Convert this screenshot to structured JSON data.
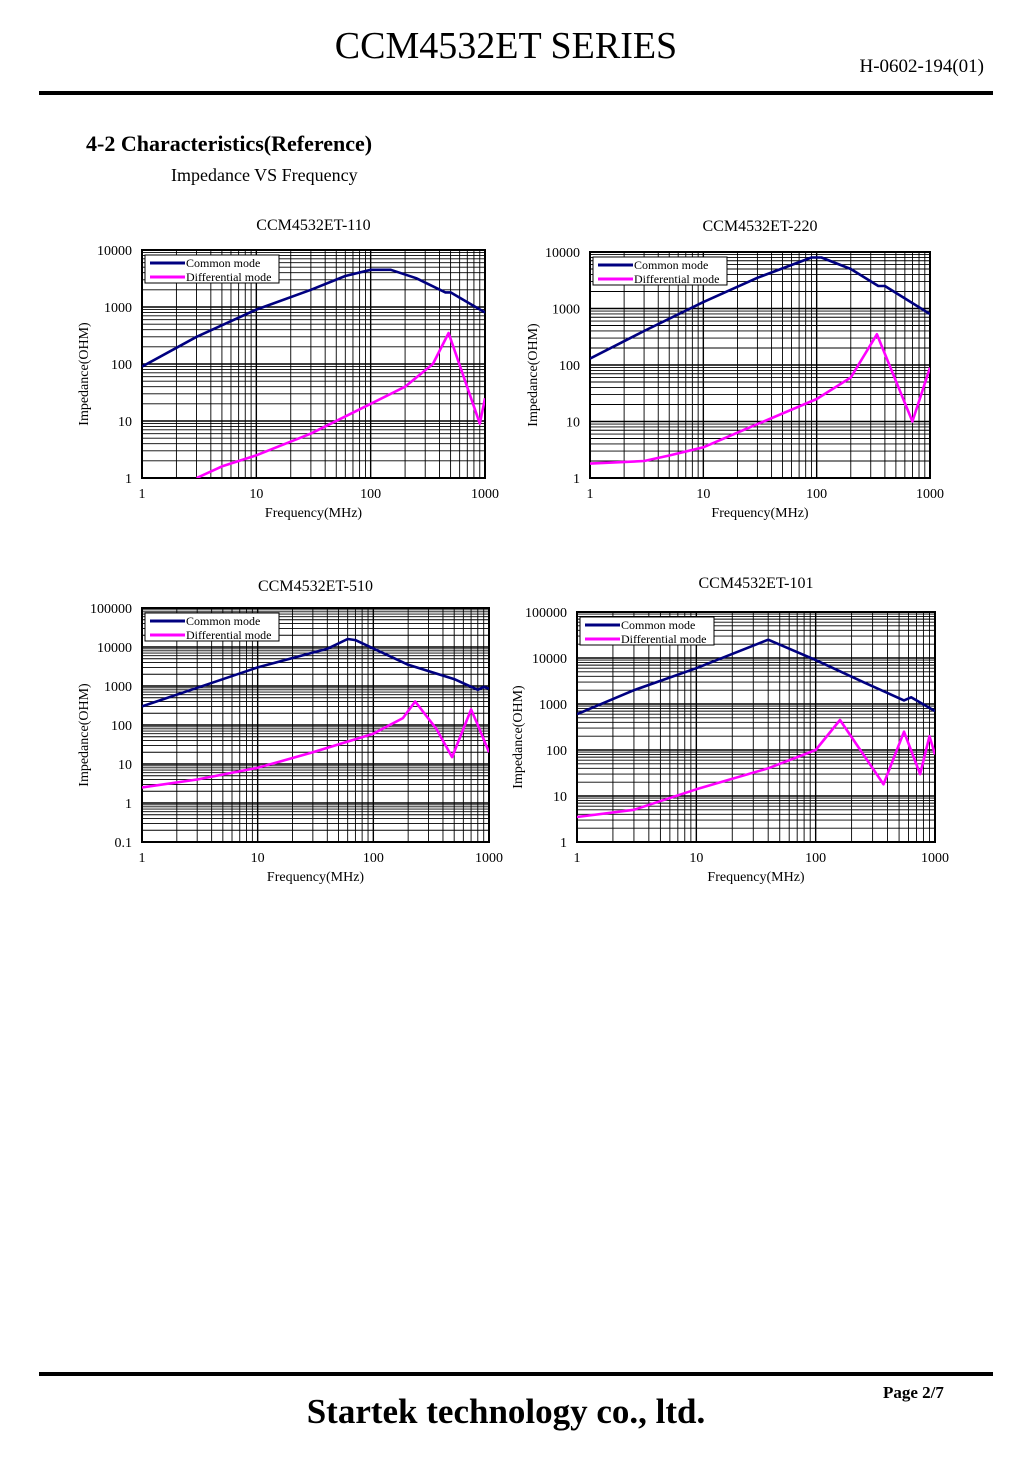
{
  "header": {
    "title": "CCM4532ET SERIES",
    "doc_code": "H-0602-194(01)"
  },
  "section": {
    "title": "4-2 Characteristics(Reference)",
    "subtitle": "Impedance VS Frequency"
  },
  "footer": {
    "page": "Page 2/7",
    "company": "Startek technology co., ltd."
  },
  "colors": {
    "common": "#000080",
    "differential": "#ff00ff"
  },
  "chart_data": [
    {
      "type": "line",
      "title": "CCM4532ET-110",
      "xlabel": "Frequency(MHz)",
      "ylabel": "Impedance(OHM)",
      "xscale": "log",
      "yscale": "log",
      "xlim": [
        1,
        1000
      ],
      "ylim": [
        1,
        10000
      ],
      "xticks": [
        "1",
        "10",
        "100",
        "1000"
      ],
      "yticks": [
        "1",
        "10",
        "100",
        "1000",
        "10000"
      ],
      "grid": true,
      "legend": "top-left",
      "series": [
        {
          "name": "Common mode",
          "points": [
            [
              1,
              90
            ],
            [
              3,
              300
            ],
            [
              10,
              900
            ],
            [
              30,
              2000
            ],
            [
              60,
              3500
            ],
            [
              100,
              4500
            ],
            [
              150,
              4500
            ],
            [
              250,
              3200
            ],
            [
              450,
              1800
            ],
            [
              500,
              1800
            ],
            [
              1000,
              800
            ]
          ]
        },
        {
          "name": "Differential mode",
          "points": [
            [
              3,
              1
            ],
            [
              5,
              1.6
            ],
            [
              10,
              2.5
            ],
            [
              30,
              6
            ],
            [
              100,
              20
            ],
            [
              200,
              40
            ],
            [
              350,
              100
            ],
            [
              480,
              350
            ],
            [
              900,
              9
            ],
            [
              1000,
              25
            ]
          ]
        }
      ]
    },
    {
      "type": "line",
      "title": "CCM4532ET-220",
      "xlabel": "Frequency(MHz)",
      "ylabel": "Impedance(OHM)",
      "xscale": "log",
      "yscale": "log",
      "xlim": [
        1,
        1000
      ],
      "ylim": [
        1,
        10000
      ],
      "xticks": [
        "1",
        "10",
        "100",
        "1000"
      ],
      "yticks": [
        "1",
        "10",
        "100",
        "1000",
        "10000"
      ],
      "grid": true,
      "legend": "top-left",
      "series": [
        {
          "name": "Common mode",
          "points": [
            [
              1,
              130
            ],
            [
              3,
              400
            ],
            [
              10,
              1300
            ],
            [
              30,
              3500
            ],
            [
              90,
              8000
            ],
            [
              110,
              8000
            ],
            [
              200,
              5000
            ],
            [
              350,
              2500
            ],
            [
              400,
              2500
            ],
            [
              1000,
              800
            ]
          ]
        },
        {
          "name": "Differential mode",
          "points": [
            [
              1,
              1.8
            ],
            [
              3,
              2
            ],
            [
              5,
              2.5
            ],
            [
              10,
              3.5
            ],
            [
              30,
              9
            ],
            [
              100,
              25
            ],
            [
              200,
              60
            ],
            [
              340,
              350
            ],
            [
              700,
              10
            ],
            [
              1000,
              90
            ]
          ]
        }
      ]
    },
    {
      "type": "line",
      "title": "CCM4532ET-510",
      "xlabel": "Frequency(MHz)",
      "ylabel": "Impedance(OHM)",
      "xscale": "log",
      "yscale": "log",
      "xlim": [
        1,
        1000
      ],
      "ylim": [
        0.1,
        100000
      ],
      "xticks": [
        "1",
        "10",
        "100",
        "1000"
      ],
      "yticks": [
        "0.1",
        "1",
        "10",
        "100",
        "1000",
        "10000",
        "100000"
      ],
      "grid": true,
      "legend": "top-left",
      "series": [
        {
          "name": "Common mode",
          "points": [
            [
              1,
              300
            ],
            [
              3,
              900
            ],
            [
              10,
              3000
            ],
            [
              40,
              9000
            ],
            [
              60,
              16000
            ],
            [
              70,
              15000
            ],
            [
              200,
              3500
            ],
            [
              500,
              1500
            ],
            [
              800,
              800
            ],
            [
              900,
              950
            ],
            [
              1000,
              850
            ]
          ]
        },
        {
          "name": "Differential mode",
          "points": [
            [
              1,
              2.5
            ],
            [
              3,
              4
            ],
            [
              10,
              8
            ],
            [
              30,
              20
            ],
            [
              100,
              60
            ],
            [
              180,
              150
            ],
            [
              230,
              400
            ],
            [
              350,
              80
            ],
            [
              480,
              15
            ],
            [
              700,
              250
            ],
            [
              800,
              100
            ],
            [
              1000,
              20
            ]
          ]
        }
      ]
    },
    {
      "type": "line",
      "title": "CCM4532ET-101",
      "xlabel": "Frequency(MHz)",
      "ylabel": "Impedance(OHM)",
      "xscale": "log",
      "yscale": "log",
      "xlim": [
        1,
        1000
      ],
      "ylim": [
        1,
        100000
      ],
      "xticks": [
        "1",
        "10",
        "100",
        "1000"
      ],
      "yticks": [
        "1",
        "10",
        "100",
        "1000",
        "10000",
        "100000"
      ],
      "grid": true,
      "legend": "top-left",
      "series": [
        {
          "name": "Common mode",
          "points": [
            [
              1,
              600
            ],
            [
              3,
              2000
            ],
            [
              10,
              6000
            ],
            [
              40,
              25000
            ],
            [
              100,
              9000
            ],
            [
              250,
              3000
            ],
            [
              550,
              1200
            ],
            [
              630,
              1400
            ],
            [
              1000,
              700
            ]
          ]
        },
        {
          "name": "Differential mode",
          "points": [
            [
              1,
              3.5
            ],
            [
              3,
              5
            ],
            [
              10,
              14
            ],
            [
              40,
              40
            ],
            [
              100,
              100
            ],
            [
              160,
              450
            ],
            [
              370,
              18
            ],
            [
              550,
              250
            ],
            [
              750,
              30
            ],
            [
              900,
              200
            ],
            [
              1000,
              80
            ]
          ]
        }
      ]
    }
  ]
}
